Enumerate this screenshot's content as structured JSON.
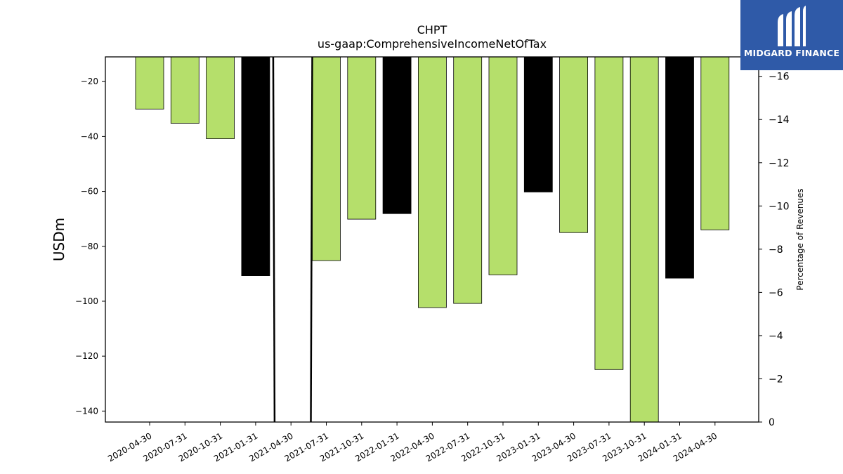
{
  "chart_data": {
    "type": "bar",
    "title": "CHPT",
    "subtitle": "us-gaap:ComprehensiveIncomeNetOfTax",
    "ylabel": "USDm",
    "y2label": "Percentage of Revenues",
    "categories": [
      "2020-04-30",
      "2020-07-31",
      "2020-10-31",
      "2021-01-31",
      "2021-04-30",
      "2021-07-31",
      "2021-10-31",
      "2022-01-31",
      "2022-04-30",
      "2022-07-31",
      "2022-10-31",
      "2023-01-31",
      "2023-04-30",
      "2023-07-31",
      "2023-10-31",
      "2024-01-31",
      "2024-04-30"
    ],
    "values": [
      -30,
      -35.2,
      -40.8,
      -90.7,
      null,
      -85.2,
      -70.1,
      -68.1,
      -102.3,
      -100.8,
      -90.4,
      -60.2,
      -75,
      -124.9,
      -146,
      -91.6,
      -74
    ],
    "bar_colors": [
      "#b5df6b",
      "#b5df6b",
      "#b5df6b",
      "#000000",
      "#b5df6b",
      "#b5df6b",
      "#b5df6b",
      "#000000",
      "#b5df6b",
      "#b5df6b",
      "#b5df6b",
      "#000000",
      "#b5df6b",
      "#b5df6b",
      "#b5df6b",
      "#000000",
      "#b5df6b"
    ],
    "ylim": [
      -144,
      -11
    ],
    "yticks": [
      -20,
      -40,
      -60,
      -80,
      -100,
      -120,
      -140
    ],
    "y2lim": [
      0,
      16.9
    ],
    "y2ticks": [
      0,
      2,
      4,
      6,
      8,
      10,
      12,
      14,
      16
    ],
    "y2_tick_labels": [
      "0",
      "−2",
      "−4",
      "−6",
      "−8",
      "−10",
      "−12",
      "−14",
      "−16"
    ],
    "percent_line": {
      "x_index": [
        3.5,
        4.6
      ],
      "values": [
        -150,
        -150
      ],
      "color": "#000000"
    },
    "grid": false,
    "legend": "none"
  },
  "logo": {
    "text": "MIDGARD FINANCE",
    "color": "#2f5aa8"
  }
}
